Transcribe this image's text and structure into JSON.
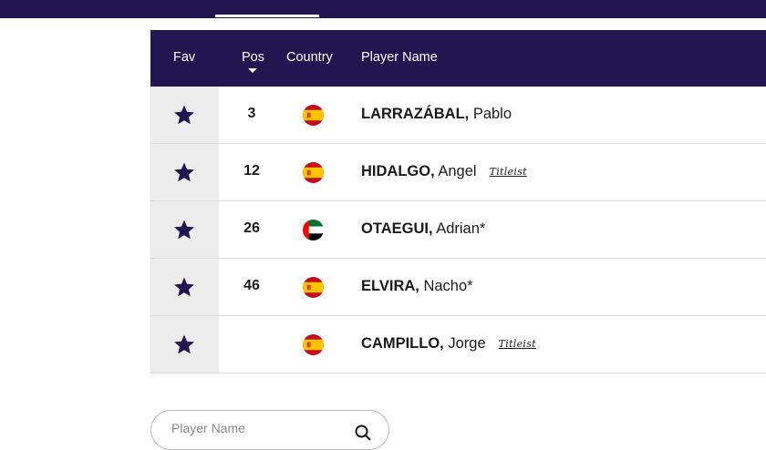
{
  "table": {
    "headers": {
      "fav": "Fav",
      "pos": "Pos",
      "country": "Country",
      "player": "Player Name"
    },
    "rows": [
      {
        "pos": "3",
        "country": "Spain",
        "flag": "spain-flag-icon",
        "last_name": "LARRAZÁBAL,",
        "first_name": "Pablo",
        "sponsor": ""
      },
      {
        "pos": "12",
        "country": "Spain",
        "flag": "spain-flag-icon",
        "last_name": "HIDALGO,",
        "first_name": "Angel",
        "sponsor": "Titleist"
      },
      {
        "pos": "26",
        "country": "UAE",
        "flag": "uae-flag-icon",
        "last_name": "OTAEGUI,",
        "first_name": "Adrian*",
        "sponsor": ""
      },
      {
        "pos": "46",
        "country": "Spain",
        "flag": "spain-flag-icon",
        "last_name": "ELVIRA,",
        "first_name": "Nacho*",
        "sponsor": ""
      },
      {
        "pos": "",
        "country": "Spain",
        "flag": "spain-flag-icon",
        "last_name": "CAMPILLO,",
        "first_name": "Jorge",
        "sponsor": "Titleist"
      }
    ]
  },
  "search": {
    "placeholder": "Player Name"
  },
  "colors": {
    "header_bg": "#211650",
    "star": "#211650",
    "fav_cell": "#ececec"
  }
}
